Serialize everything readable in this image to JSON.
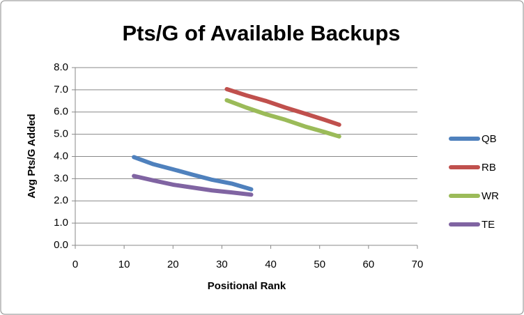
{
  "chart_data": {
    "type": "line",
    "title": "Pts/G of Available Backups",
    "x_label": "Positional Rank",
    "y_label": "Avg Pts/G Added",
    "xlim": [
      0,
      70
    ],
    "xticks": [
      0,
      10,
      20,
      30,
      40,
      50,
      60,
      70
    ],
    "ylim": [
      0,
      8
    ],
    "yticks": [
      {
        "value": 0,
        "label": "0.0"
      },
      {
        "value": 1,
        "label": "1.0"
      },
      {
        "value": 2,
        "label": "2.0"
      },
      {
        "value": 3,
        "label": "3.0"
      },
      {
        "value": 4,
        "label": "4.0"
      },
      {
        "value": 5,
        "label": "5.0"
      },
      {
        "value": 6,
        "label": "6.0"
      },
      {
        "value": 7,
        "label": "7.0"
      },
      {
        "value": 8,
        "label": "8.0"
      }
    ],
    "grid": true,
    "legend": "right",
    "series": [
      {
        "name": "QB",
        "color": "#4f81bd",
        "x": [
          12,
          16,
          20,
          24,
          28,
          32,
          36
        ],
        "values": [
          3.97,
          3.65,
          3.42,
          3.18,
          2.95,
          2.78,
          2.52
        ]
      },
      {
        "name": "RB",
        "color": "#c0504d",
        "x": [
          31,
          35,
          39,
          43,
          47,
          51,
          54
        ],
        "values": [
          7.03,
          6.75,
          6.5,
          6.2,
          5.93,
          5.65,
          5.43
        ]
      },
      {
        "name": "WR",
        "color": "#9bbb59",
        "x": [
          31,
          35,
          39,
          43,
          47,
          51,
          54
        ],
        "values": [
          6.53,
          6.2,
          5.9,
          5.65,
          5.35,
          5.1,
          4.9
        ]
      },
      {
        "name": "TE",
        "color": "#8064a2",
        "x": [
          12,
          16,
          20,
          24,
          28,
          32,
          36
        ],
        "values": [
          3.12,
          2.92,
          2.73,
          2.6,
          2.47,
          2.38,
          2.28
        ]
      }
    ]
  }
}
